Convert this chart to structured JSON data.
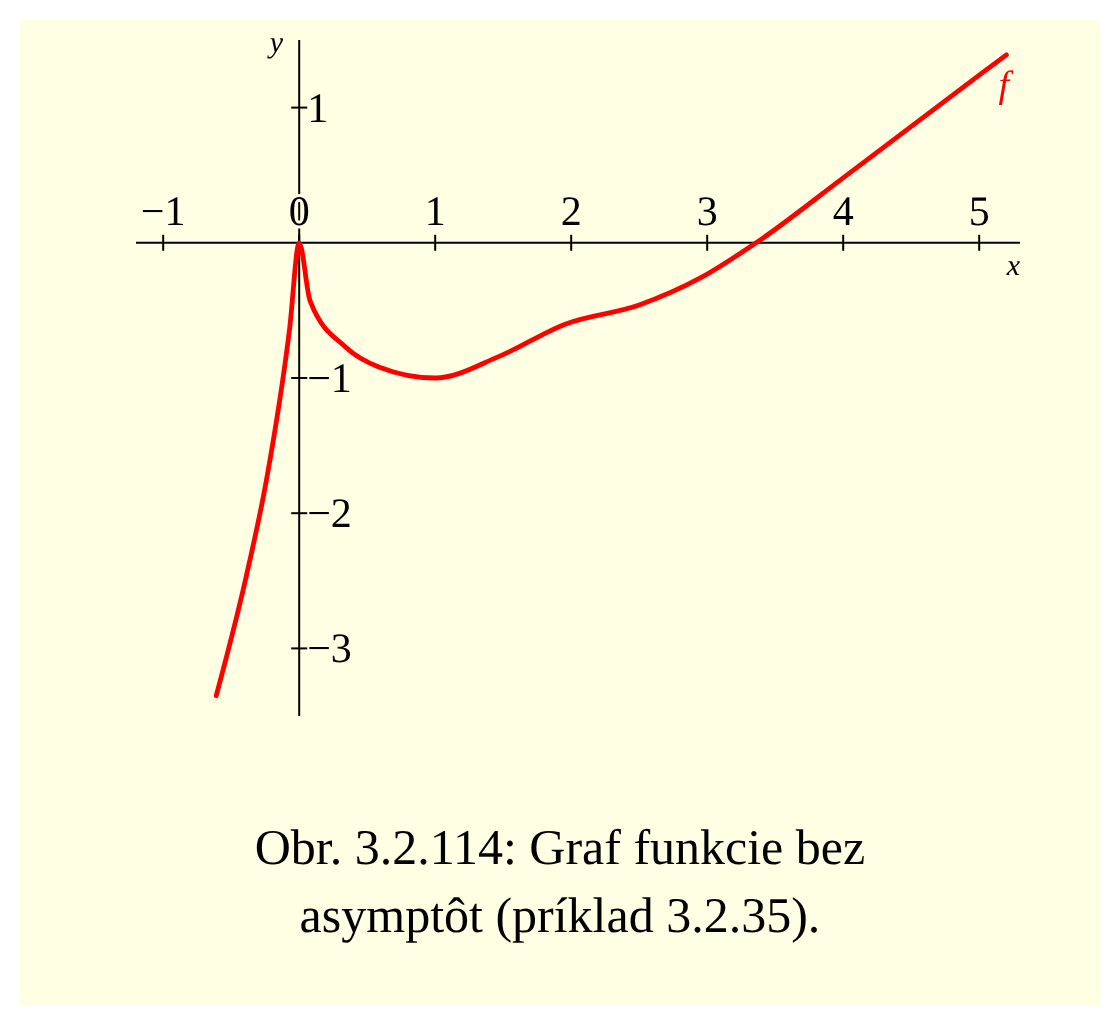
{
  "chart_data": {
    "type": "line",
    "xlabel": "x",
    "ylabel": "y",
    "xlim": [
      -1.2,
      5.3
    ],
    "ylim": [
      -3.5,
      1.5
    ],
    "xticks": [
      -1,
      0,
      1,
      2,
      3,
      4,
      5
    ],
    "yticks": [
      -3,
      -2,
      -1,
      1
    ],
    "grid": false,
    "marker": "none",
    "line_style": "solid",
    "series": [
      {
        "name": "f",
        "color": "#ff0000",
        "x": [
          -0.61,
          -0.39,
          -0.24,
          -0.07,
          0,
          0.08,
          0.34,
          0.59,
          1.0,
          1.47,
          1.96,
          2.5,
          2.95,
          3.36,
          4.0,
          5.0,
          5.2
        ],
        "values": [
          -3.35,
          -2.47,
          -1.75,
          -0.63,
          0,
          -0.43,
          -0.77,
          -0.92,
          -1.0,
          -0.84,
          -0.6,
          -0.46,
          -0.26,
          0,
          0.48,
          1.24,
          1.39
        ]
      }
    ],
    "annotations": [
      "Obr. 3.2.114: Graf funkcie bez asymptôt (príklad 3.2.35)."
    ]
  }
}
